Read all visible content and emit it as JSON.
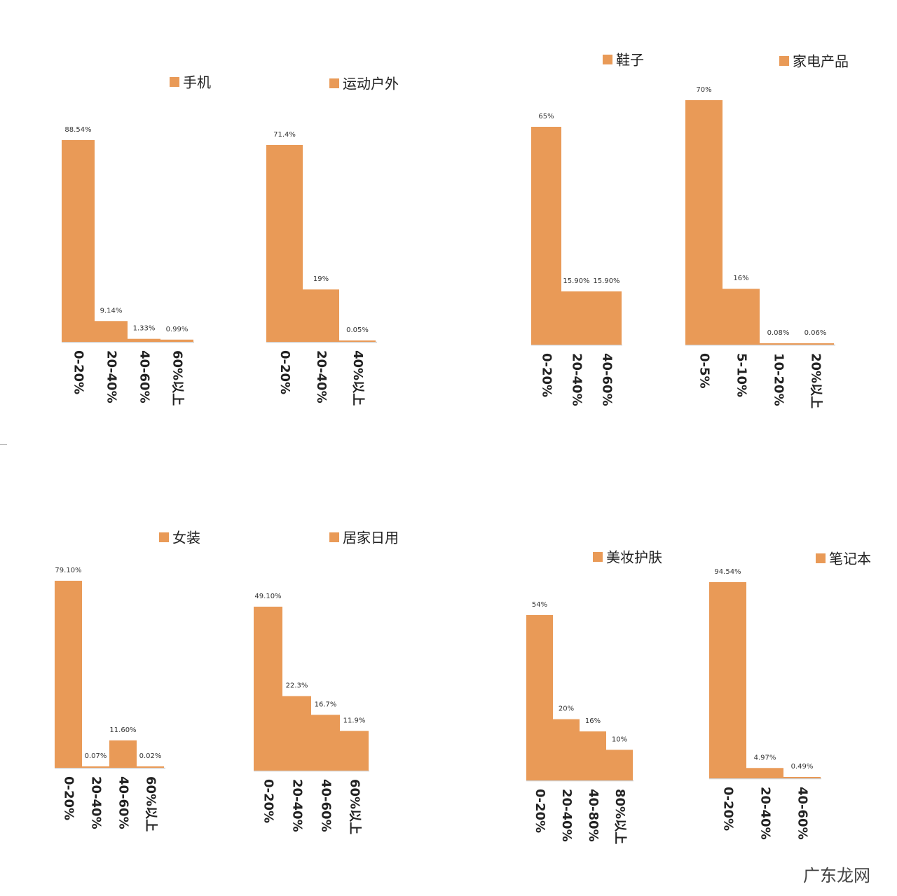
{
  "watermark": "广东龙网",
  "colors": {
    "bar": "#E99A57",
    "axis": "#d0d0d0",
    "text": "#222222"
  },
  "chart_data": [
    {
      "type": "bar",
      "legend": "手机",
      "categories": [
        "0-20%",
        "20-40%",
        "40-60%",
        "60%以上"
      ],
      "values": [
        88.54,
        9.14,
        1.33,
        0.99
      ],
      "labels": [
        "88.54%",
        "9.14%",
        "1.33%",
        "0.99%"
      ],
      "ylim": [
        0,
        88.54
      ]
    },
    {
      "type": "bar",
      "legend": "运动户外",
      "categories": [
        "0-20%",
        "20-40%",
        "40%以上"
      ],
      "values": [
        71.4,
        19,
        0.05
      ],
      "labels": [
        "71.4%",
        "19%",
        "0.05%"
      ],
      "ylim": [
        0,
        71.4
      ]
    },
    {
      "type": "bar",
      "legend": "鞋子",
      "categories": [
        "0-20%",
        "20-40%",
        "40-60%"
      ],
      "values": [
        65,
        15.9,
        15.9
      ],
      "labels": [
        "65%",
        "15.90%",
        "15.90%"
      ],
      "ylim": [
        0,
        65
      ]
    },
    {
      "type": "bar",
      "legend": "家电产品",
      "categories": [
        "0-5%",
        "5-10%",
        "10-20%",
        "20%以上"
      ],
      "values": [
        70,
        16,
        0.08,
        0.06
      ],
      "labels": [
        "70%",
        "16%",
        "0.08%",
        "0.06%"
      ],
      "ylim": [
        0,
        70
      ]
    },
    {
      "type": "bar",
      "legend": "女装",
      "categories": [
        "0-20%",
        "20-40%",
        "40-60%",
        "60%以上"
      ],
      "values": [
        79.1,
        0.07,
        11.6,
        0.02
      ],
      "labels": [
        "79.10%",
        "0.07%",
        "11.60%",
        "0.02%"
      ],
      "ylim": [
        0,
        79.1
      ]
    },
    {
      "type": "bar",
      "legend": "居家日用",
      "categories": [
        "0-20%",
        "20-40%",
        "40-60%",
        "60%以上"
      ],
      "values": [
        49.1,
        22.3,
        16.7,
        11.9
      ],
      "labels": [
        "49.10%",
        "22.3%",
        "16.7%",
        "11.9%"
      ],
      "ylim": [
        0,
        49.1
      ]
    },
    {
      "type": "bar",
      "legend": "美妆护肤",
      "categories": [
        "0-20%",
        "20-40%",
        "40-80%",
        "80%以上"
      ],
      "values": [
        54,
        20,
        16,
        10
      ],
      "labels": [
        "54%",
        "20%",
        "16%",
        "10%"
      ],
      "ylim": [
        0,
        54
      ]
    },
    {
      "type": "bar",
      "legend": "笔记本",
      "categories": [
        "0-20%",
        "20-40%",
        "40-60%"
      ],
      "values": [
        94.54,
        4.97,
        0.49
      ],
      "labels": [
        "94.54%",
        "4.97%",
        "0.49%"
      ],
      "ylim": [
        0,
        94.54
      ]
    }
  ]
}
